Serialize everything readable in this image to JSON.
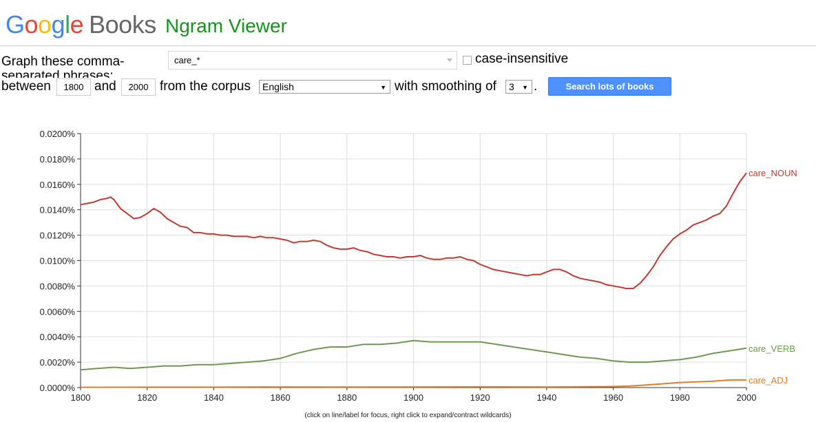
{
  "header": {
    "logo_text": "Google",
    "logo_books": "Books",
    "product": "Ngram Viewer"
  },
  "form": {
    "label_graph_line1": "Graph these comma-",
    "label_graph_line2": "separated phrases:",
    "query_value": "care_*",
    "case_insensitive_label": "case-insensitive",
    "between_label": "between",
    "start_year": "1800",
    "and_label": "and",
    "end_year": "2000",
    "corpus_label": "from the corpus",
    "corpus_value": "English",
    "smoothing_label": "with smoothing of",
    "smoothing_value": "3",
    "period": ".",
    "search_button": "Search lots of books"
  },
  "caption": "(click on line/label for focus, right click to expand/contract wildcards)",
  "chart_data": {
    "type": "line",
    "title": "",
    "xlabel": "",
    "ylabel": "",
    "xlim": [
      1800,
      2000
    ],
    "ylim": [
      0,
      0.02
    ],
    "x_ticks": [
      1800,
      1820,
      1840,
      1860,
      1880,
      1900,
      1920,
      1940,
      1960,
      1980,
      2000
    ],
    "y_ticks": [
      "0.0000%",
      "0.0020%",
      "0.0040%",
      "0.0060%",
      "0.0080%",
      "0.0100%",
      "0.0120%",
      "0.0140%",
      "0.0160%",
      "0.0180%",
      "0.0200%"
    ],
    "y_tick_values": [
      0,
      0.002,
      0.004,
      0.006,
      0.008,
      0.01,
      0.012,
      0.014,
      0.016,
      0.018,
      0.02
    ],
    "grid": true,
    "legend": "line-end labels, right",
    "series": [
      {
        "name": "care_NOUN",
        "color": "#c0392b",
        "points": [
          [
            1800,
            0.0144
          ],
          [
            1802,
            0.0145
          ],
          [
            1804,
            0.0146
          ],
          [
            1806,
            0.0148
          ],
          [
            1808,
            0.0149
          ],
          [
            1809,
            0.015
          ],
          [
            1810,
            0.0148
          ],
          [
            1812,
            0.0141
          ],
          [
            1814,
            0.0137
          ],
          [
            1816,
            0.0133
          ],
          [
            1818,
            0.0134
          ],
          [
            1820,
            0.0137
          ],
          [
            1822,
            0.0141
          ],
          [
            1824,
            0.0138
          ],
          [
            1826,
            0.0133
          ],
          [
            1828,
            0.013
          ],
          [
            1830,
            0.0127
          ],
          [
            1832,
            0.0126
          ],
          [
            1834,
            0.0122
          ],
          [
            1836,
            0.0122
          ],
          [
            1838,
            0.0121
          ],
          [
            1840,
            0.0121
          ],
          [
            1842,
            0.012
          ],
          [
            1844,
            0.012
          ],
          [
            1846,
            0.0119
          ],
          [
            1848,
            0.0119
          ],
          [
            1850,
            0.0119
          ],
          [
            1852,
            0.0118
          ],
          [
            1854,
            0.0119
          ],
          [
            1856,
            0.0118
          ],
          [
            1858,
            0.0118
          ],
          [
            1860,
            0.0117
          ],
          [
            1862,
            0.0116
          ],
          [
            1864,
            0.0114
          ],
          [
            1866,
            0.0115
          ],
          [
            1868,
            0.0115
          ],
          [
            1870,
            0.0116
          ],
          [
            1872,
            0.0115
          ],
          [
            1874,
            0.0112
          ],
          [
            1876,
            0.011
          ],
          [
            1878,
            0.0109
          ],
          [
            1880,
            0.0109
          ],
          [
            1882,
            0.011
          ],
          [
            1884,
            0.0108
          ],
          [
            1886,
            0.0107
          ],
          [
            1888,
            0.0105
          ],
          [
            1890,
            0.0104
          ],
          [
            1892,
            0.0103
          ],
          [
            1894,
            0.0103
          ],
          [
            1896,
            0.0102
          ],
          [
            1898,
            0.0103
          ],
          [
            1900,
            0.0103
          ],
          [
            1902,
            0.0104
          ],
          [
            1904,
            0.0102
          ],
          [
            1906,
            0.0101
          ],
          [
            1908,
            0.0101
          ],
          [
            1910,
            0.0102
          ],
          [
            1912,
            0.0102
          ],
          [
            1914,
            0.0103
          ],
          [
            1916,
            0.0101
          ],
          [
            1918,
            0.01
          ],
          [
            1920,
            0.0097
          ],
          [
            1922,
            0.0095
          ],
          [
            1924,
            0.0093
          ],
          [
            1926,
            0.0092
          ],
          [
            1928,
            0.0091
          ],
          [
            1930,
            0.009
          ],
          [
            1932,
            0.0089
          ],
          [
            1934,
            0.0088
          ],
          [
            1936,
            0.0089
          ],
          [
            1938,
            0.0089
          ],
          [
            1940,
            0.0091
          ],
          [
            1942,
            0.0093
          ],
          [
            1944,
            0.0093
          ],
          [
            1946,
            0.0091
          ],
          [
            1948,
            0.0088
          ],
          [
            1950,
            0.0086
          ],
          [
            1952,
            0.0085
          ],
          [
            1954,
            0.0084
          ],
          [
            1956,
            0.0083
          ],
          [
            1958,
            0.0081
          ],
          [
            1960,
            0.008
          ],
          [
            1962,
            0.0079
          ],
          [
            1964,
            0.0078
          ],
          [
            1966,
            0.0078
          ],
          [
            1968,
            0.0082
          ],
          [
            1970,
            0.0088
          ],
          [
            1972,
            0.0095
          ],
          [
            1974,
            0.0104
          ],
          [
            1976,
            0.0111
          ],
          [
            1978,
            0.0117
          ],
          [
            1980,
            0.0121
          ],
          [
            1982,
            0.0124
          ],
          [
            1984,
            0.0128
          ],
          [
            1986,
            0.013
          ],
          [
            1988,
            0.0132
          ],
          [
            1990,
            0.0135
          ],
          [
            1992,
            0.0137
          ],
          [
            1994,
            0.0143
          ],
          [
            1996,
            0.0153
          ],
          [
            1998,
            0.0162
          ],
          [
            2000,
            0.0169
          ]
        ]
      },
      {
        "name": "care_VERB",
        "color": "#6a994e",
        "points": [
          [
            1800,
            0.0014
          ],
          [
            1805,
            0.0015
          ],
          [
            1810,
            0.0016
          ],
          [
            1815,
            0.0015
          ],
          [
            1820,
            0.0016
          ],
          [
            1825,
            0.0017
          ],
          [
            1830,
            0.0017
          ],
          [
            1835,
            0.0018
          ],
          [
            1840,
            0.0018
          ],
          [
            1845,
            0.0019
          ],
          [
            1850,
            0.002
          ],
          [
            1855,
            0.0021
          ],
          [
            1860,
            0.0023
          ],
          [
            1865,
            0.0027
          ],
          [
            1870,
            0.003
          ],
          [
            1875,
            0.0032
          ],
          [
            1880,
            0.0032
          ],
          [
            1885,
            0.0034
          ],
          [
            1890,
            0.0034
          ],
          [
            1895,
            0.0035
          ],
          [
            1900,
            0.0037
          ],
          [
            1905,
            0.0036
          ],
          [
            1910,
            0.0036
          ],
          [
            1915,
            0.0036
          ],
          [
            1920,
            0.0036
          ],
          [
            1925,
            0.0034
          ],
          [
            1930,
            0.0032
          ],
          [
            1935,
            0.003
          ],
          [
            1940,
            0.0028
          ],
          [
            1945,
            0.0026
          ],
          [
            1950,
            0.0024
          ],
          [
            1955,
            0.0023
          ],
          [
            1960,
            0.0021
          ],
          [
            1965,
            0.002
          ],
          [
            1970,
            0.002
          ],
          [
            1975,
            0.0021
          ],
          [
            1980,
            0.0022
          ],
          [
            1985,
            0.0024
          ],
          [
            1990,
            0.0027
          ],
          [
            1995,
            0.0029
          ],
          [
            2000,
            0.0031
          ]
        ]
      },
      {
        "name": "care_ADJ",
        "color": "#e07b26",
        "points": [
          [
            1800,
            2e-05
          ],
          [
            1820,
            3e-05
          ],
          [
            1840,
            3e-05
          ],
          [
            1860,
            5e-05
          ],
          [
            1880,
            4e-05
          ],
          [
            1900,
            5e-05
          ],
          [
            1920,
            6e-05
          ],
          [
            1940,
            5e-05
          ],
          [
            1960,
            8e-05
          ],
          [
            1965,
            0.00012
          ],
          [
            1970,
            0.0002
          ],
          [
            1975,
            0.0003
          ],
          [
            1980,
            0.0004
          ],
          [
            1985,
            0.00045
          ],
          [
            1990,
            0.0005
          ],
          [
            1995,
            0.0006
          ],
          [
            2000,
            0.0006
          ]
        ]
      }
    ]
  }
}
